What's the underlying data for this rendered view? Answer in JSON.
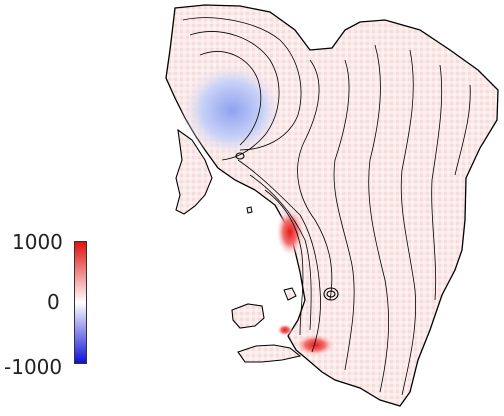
{
  "colorbar": {
    "max_label": "1000",
    "mid_label": "0",
    "min_label": "-1000",
    "max_color": "#e01010",
    "mid_color": "#ffffff",
    "min_color": "#1010d8"
  },
  "map": {
    "coastline_color": "#000000",
    "contour_color": "#000000"
  }
}
